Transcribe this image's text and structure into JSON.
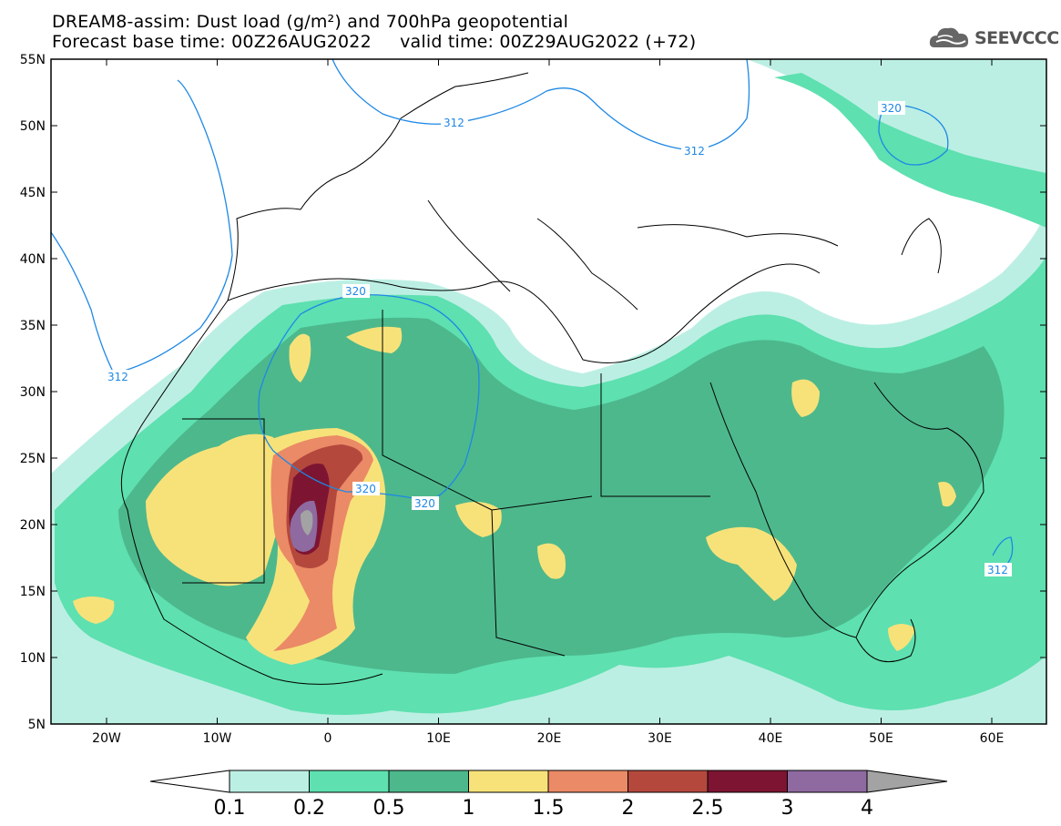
{
  "title": {
    "line1": "DREAM8-assim: Dust load (g/m²) and 700hPa geopotential",
    "line2": "Forecast base time: 00Z26AUG2022     valid time: 00Z29AUG2022 (+72)"
  },
  "logo": {
    "text": "SEEVCCC",
    "icon": "cloud-icon"
  },
  "axes": {
    "lat_labels": [
      "55N",
      "50N",
      "45N",
      "40N",
      "35N",
      "30N",
      "25N",
      "20N",
      "15N",
      "10N",
      "5N"
    ],
    "lon_labels": [
      "20W",
      "10W",
      "0",
      "10E",
      "20E",
      "30E",
      "40E",
      "50E",
      "60E"
    ]
  },
  "contour_labels": [
    {
      "text": "312",
      "name": "contour-label-312-atlantic"
    },
    {
      "text": "312",
      "name": "contour-label-312-europe-west"
    },
    {
      "text": "312",
      "name": "contour-label-312-europe-east"
    },
    {
      "text": "320",
      "name": "contour-label-320-caspian"
    },
    {
      "text": "320",
      "name": "contour-label-320-sahara-north"
    },
    {
      "text": "320",
      "name": "contour-label-320-sahara-a"
    },
    {
      "text": "320",
      "name": "contour-label-320-sahara-b"
    },
    {
      "text": "312",
      "name": "contour-label-312-arabian-sea"
    }
  ],
  "colorbar": {
    "labels": [
      "0.1",
      "0.2",
      "0.5",
      "1",
      "1.5",
      "2",
      "2.5",
      "3",
      "4"
    ],
    "colors": {
      "c0": "#ffffff",
      "c1": "#bcefe3",
      "c2": "#5ee0b0",
      "c3": "#4db88c",
      "c4": "#f7e27a",
      "c5": "#eb8a66",
      "c6": "#b4483d",
      "c7": "#7d1532",
      "c8": "#8e6aa0",
      "c9": "#a3a3a3"
    }
  }
}
